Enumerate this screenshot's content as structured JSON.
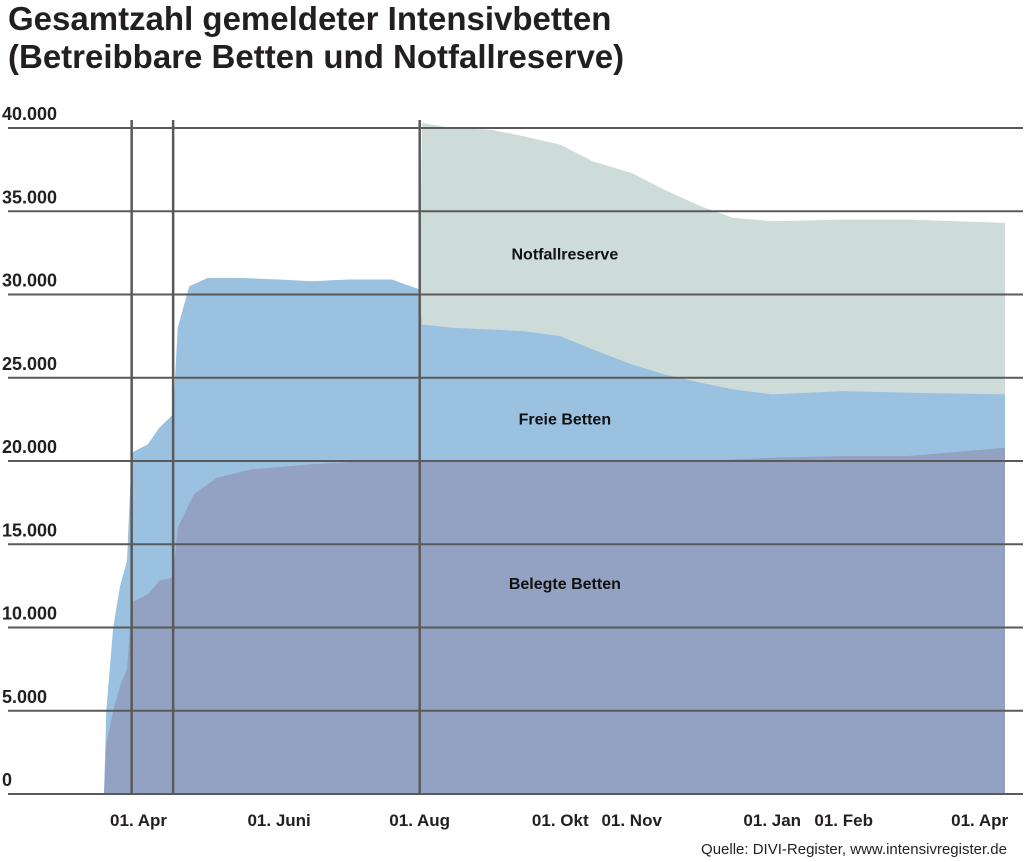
{
  "chart_data": {
    "type": "area",
    "stacked": true,
    "title": "Gesamtzahl gemeldeter Intensivbetten",
    "subtitle": "(Betreibbare Betten und Notfallreserve)",
    "source": "Quelle: DIVI-Register, www.intensivregister.de",
    "ylim": [
      0,
      40000
    ],
    "x_range": [
      "2020-03-17",
      "2021-04-12"
    ],
    "yticks": [
      0,
      5000,
      10000,
      15000,
      20000,
      25000,
      30000,
      35000,
      40000
    ],
    "ytick_labels": [
      "0",
      "5.000",
      "10.000",
      "15.000",
      "20.000",
      "25.000",
      "30.000",
      "35.000",
      "40.000"
    ],
    "xticks": [
      {
        "date": "2020-04-01",
        "label": "01. Apr"
      },
      {
        "date": "2020-06-01",
        "label": "01. Juni"
      },
      {
        "date": "2020-08-01",
        "label": "01. Aug"
      },
      {
        "date": "2020-10-01",
        "label": "01. Okt"
      },
      {
        "date": "2020-11-01",
        "label": "01. Nov"
      },
      {
        "date": "2021-01-01",
        "label": "01. Jan"
      },
      {
        "date": "2021-02-01",
        "label": "01. Feb"
      },
      {
        "date": "2021-04-01",
        "label": "01. Apr"
      }
    ],
    "vertical_lines": [
      "2020-03-29",
      "2020-04-16",
      "2020-08-01"
    ],
    "grid": true,
    "series": [
      {
        "name": "Belegte Betten",
        "color": "#93a1c2",
        "points": [
          [
            "2020-03-17",
            0
          ],
          [
            "2020-03-18",
            3000
          ],
          [
            "2020-03-21",
            5000
          ],
          [
            "2020-03-24",
            6500
          ],
          [
            "2020-03-27",
            7500
          ],
          [
            "2020-03-29",
            11500
          ],
          [
            "2020-04-05",
            12000
          ],
          [
            "2020-04-10",
            12800
          ],
          [
            "2020-04-16",
            13000
          ],
          [
            "2020-04-18",
            16000
          ],
          [
            "2020-04-25",
            18000
          ],
          [
            "2020-05-05",
            19000
          ],
          [
            "2020-05-20",
            19500
          ],
          [
            "2020-06-15",
            19800
          ],
          [
            "2020-07-10",
            20000
          ],
          [
            "2020-08-01",
            20000
          ],
          [
            "2020-09-01",
            20000
          ],
          [
            "2020-10-01",
            20000
          ],
          [
            "2020-11-01",
            20000
          ],
          [
            "2020-12-01",
            20000
          ],
          [
            "2021-01-01",
            20200
          ],
          [
            "2021-02-01",
            20300
          ],
          [
            "2021-03-01",
            20300
          ],
          [
            "2021-04-12",
            20800
          ]
        ]
      },
      {
        "name": "Freie Betten",
        "color": "#9ac1e0",
        "points": [
          [
            "2020-03-17",
            0
          ],
          [
            "2020-03-18",
            5000
          ],
          [
            "2020-03-21",
            10000
          ],
          [
            "2020-03-24",
            12500
          ],
          [
            "2020-03-27",
            14000
          ],
          [
            "2020-03-29",
            20500
          ],
          [
            "2020-04-05",
            21000
          ],
          [
            "2020-04-10",
            22000
          ],
          [
            "2020-04-16",
            22800
          ],
          [
            "2020-04-18",
            28000
          ],
          [
            "2020-04-23",
            30500
          ],
          [
            "2020-05-01",
            31000
          ],
          [
            "2020-05-15",
            31000
          ],
          [
            "2020-06-01",
            30900
          ],
          [
            "2020-06-15",
            30800
          ],
          [
            "2020-07-01",
            30900
          ],
          [
            "2020-07-20",
            30900
          ],
          [
            "2020-08-01",
            30300
          ],
          [
            "2020-08-02",
            28200
          ],
          [
            "2020-08-15",
            28000
          ],
          [
            "2020-09-01",
            27900
          ],
          [
            "2020-09-15",
            27800
          ],
          [
            "2020-10-01",
            27500
          ],
          [
            "2020-10-15",
            26700
          ],
          [
            "2020-11-01",
            25800
          ],
          [
            "2020-11-15",
            25200
          ],
          [
            "2020-12-01",
            24700
          ],
          [
            "2020-12-15",
            24300
          ],
          [
            "2021-01-01",
            24000
          ],
          [
            "2021-02-01",
            24200
          ],
          [
            "2021-03-01",
            24100
          ],
          [
            "2021-04-12",
            24000
          ]
        ]
      },
      {
        "name": "Notfallreserve",
        "color": "#cddcd8",
        "points": [
          [
            "2020-08-01",
            30300
          ],
          [
            "2020-08-02",
            40300
          ],
          [
            "2020-08-15",
            40000
          ],
          [
            "2020-09-01",
            39900
          ],
          [
            "2020-09-15",
            39500
          ],
          [
            "2020-10-01",
            39000
          ],
          [
            "2020-10-15",
            38000
          ],
          [
            "2020-11-01",
            37300
          ],
          [
            "2020-11-15",
            36300
          ],
          [
            "2020-12-01",
            35300
          ],
          [
            "2020-12-15",
            34600
          ],
          [
            "2021-01-01",
            34400
          ],
          [
            "2021-02-01",
            34500
          ],
          [
            "2021-03-01",
            34500
          ],
          [
            "2021-04-12",
            34300
          ]
        ]
      }
    ],
    "annotations": [
      {
        "text": "Notfallreserve",
        "date": "2020-10-03",
        "value": 32100
      },
      {
        "text": "Freie Betten",
        "date": "2020-10-03",
        "value": 22200
      },
      {
        "text": "Belegte Betten",
        "date": "2020-10-03",
        "value": 12300
      }
    ]
  }
}
